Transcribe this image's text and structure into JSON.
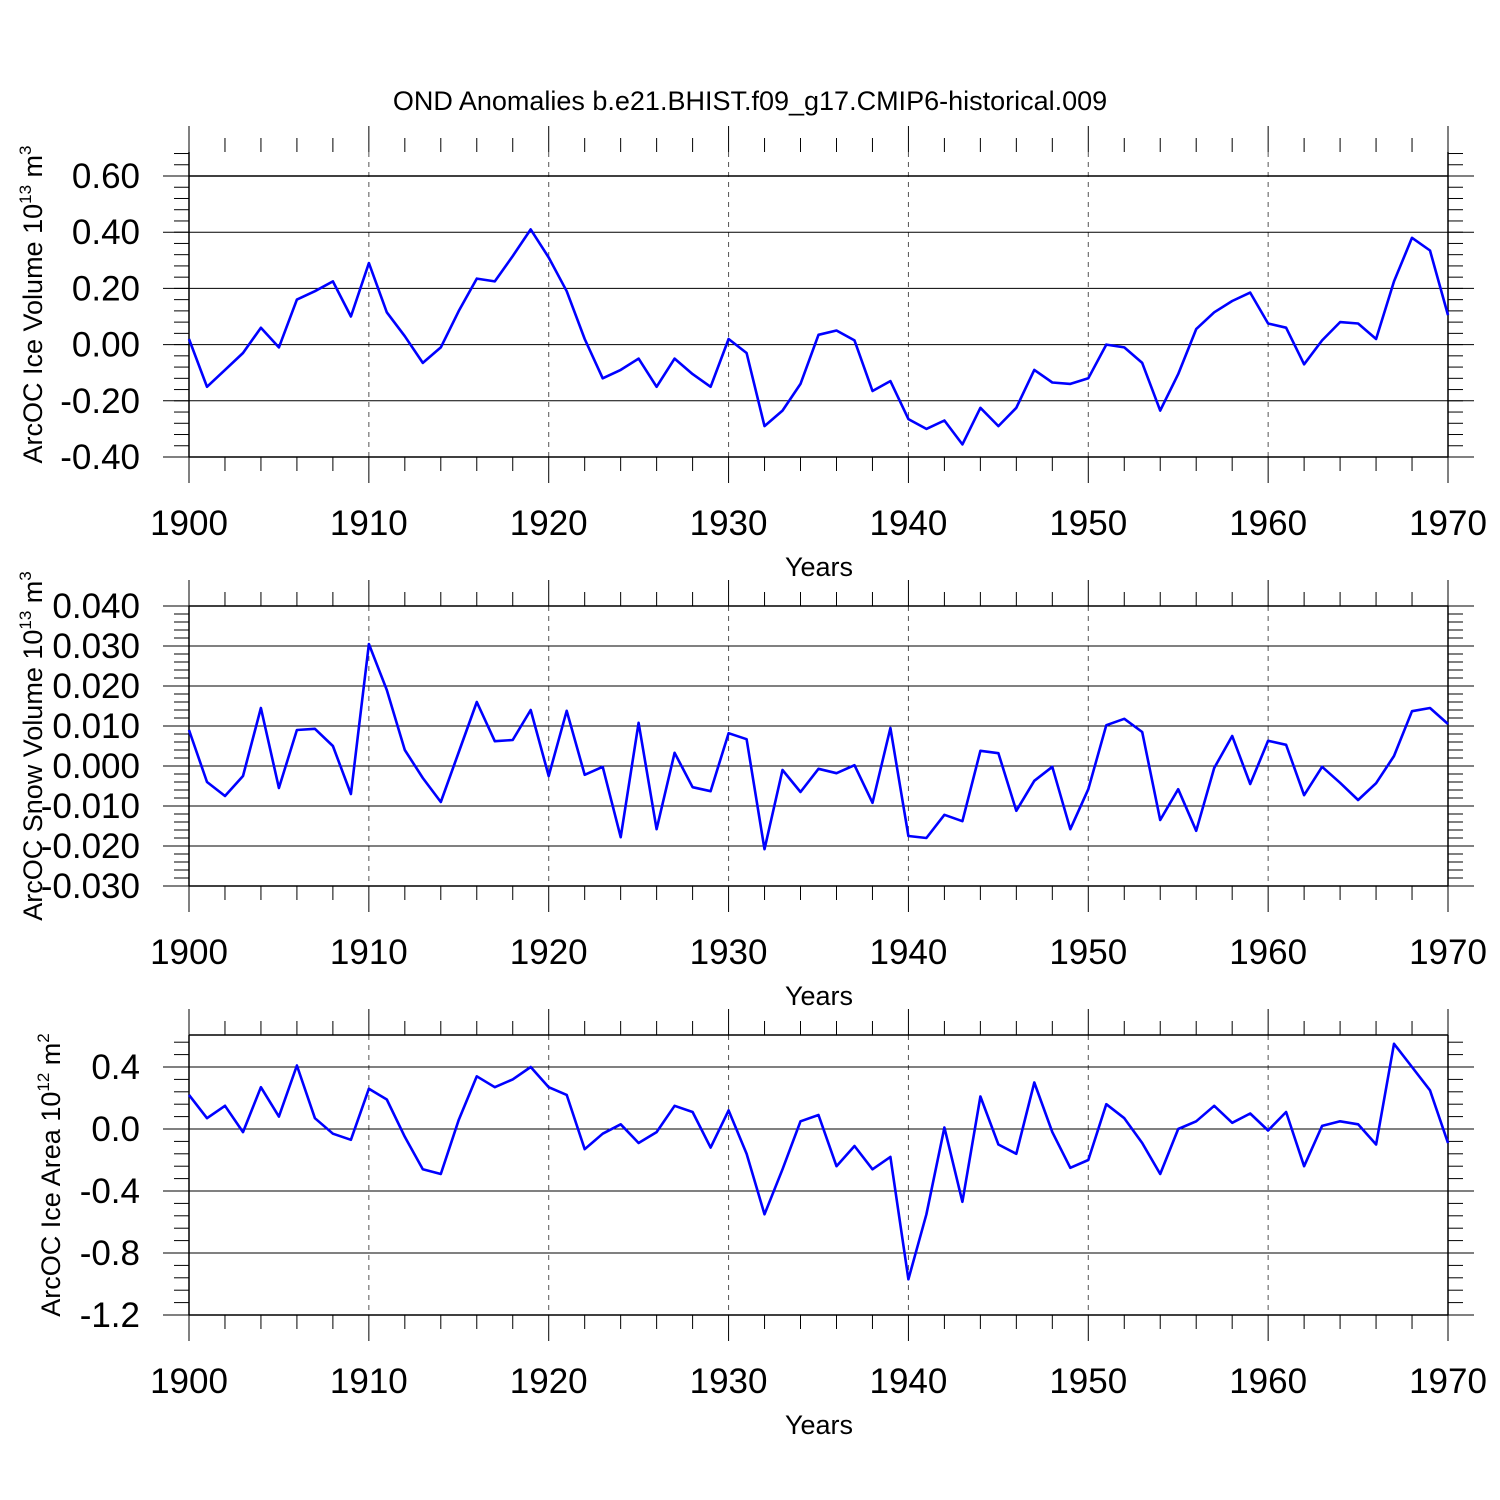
{
  "title": "OND Anomalies b.e21.BHIST.f09_g17.CMIP6-historical.009",
  "colors": {
    "line": "#0000ff",
    "axis": "#000000",
    "grid": "#555555"
  },
  "chart_data": [
    {
      "type": "line",
      "xlabel": "Years",
      "ylabel_main": "ArcOC Ice Volume 10",
      "ylabel_exp": "13",
      "ylabel_unit": " m",
      "ylabel_unit_exp": "3",
      "xlim": [
        1900,
        1970
      ],
      "ylim": [
        -0.4,
        0.7
      ],
      "yticks": [
        -0.4,
        -0.2,
        0.0,
        0.2,
        0.4,
        0.6
      ],
      "ytick_labels": [
        "-0.40",
        "-0.20",
        "0.00",
        "0.20",
        "0.40",
        "0.60"
      ],
      "xticks": [
        1900,
        1910,
        1920,
        1930,
        1940,
        1950,
        1960,
        1970
      ],
      "xtick_labels": [
        "1900",
        "1910",
        "1920",
        "1930",
        "1940",
        "1950",
        "1960",
        "1970"
      ],
      "grid_x": [
        1910,
        1920,
        1930,
        1940,
        1950,
        1960
      ],
      "series": [
        {
          "name": "ArcOC Ice Volume",
          "x_start": 1900,
          "values": [
            0.02,
            -0.15,
            -0.09,
            -0.03,
            0.06,
            -0.01,
            0.16,
            0.19,
            0.225,
            0.1,
            0.29,
            0.115,
            0.03,
            -0.065,
            -0.01,
            0.12,
            0.235,
            0.225,
            0.315,
            0.41,
            0.31,
            0.19,
            0.02,
            -0.12,
            -0.09,
            -0.05,
            -0.15,
            -0.05,
            -0.105,
            -0.15,
            0.02,
            -0.03,
            -0.29,
            -0.235,
            -0.14,
            0.035,
            0.05,
            0.015,
            -0.165,
            -0.13,
            -0.265,
            -0.3,
            -0.27,
            -0.355,
            -0.225,
            -0.29,
            -0.225,
            -0.09,
            -0.135,
            -0.14,
            -0.12,
            0.0,
            -0.01,
            -0.065,
            -0.235,
            -0.105,
            0.055,
            0.115,
            0.155,
            0.185,
            0.075,
            0.06,
            -0.07,
            0.015,
            0.08,
            0.075,
            0.02,
            0.225,
            0.38,
            0.335,
            0.105
          ]
        }
      ]
    },
    {
      "type": "line",
      "xlabel": "Years",
      "ylabel_main": "ArcOC Snow Volume 10",
      "ylabel_exp": "13",
      "ylabel_unit": " m",
      "ylabel_unit_exp": "3",
      "xlim": [
        1900,
        1970
      ],
      "ylim": [
        -0.03,
        0.04
      ],
      "yticks": [
        -0.03,
        -0.02,
        -0.01,
        0.0,
        0.01,
        0.02,
        0.03,
        0.04
      ],
      "ytick_labels": [
        "-0.030",
        "-0.020",
        "-0.010",
        "0.000",
        "0.010",
        "0.020",
        "0.030",
        "0.040"
      ],
      "xticks": [
        1900,
        1910,
        1920,
        1930,
        1940,
        1950,
        1960,
        1970
      ],
      "xtick_labels": [
        "1900",
        "1910",
        "1920",
        "1930",
        "1940",
        "1950",
        "1960",
        "1970"
      ],
      "grid_x": [
        1910,
        1920,
        1930,
        1940,
        1950,
        1960
      ],
      "series": [
        {
          "name": "ArcOC Snow Volume",
          "x_start": 1900,
          "values": [
            0.009,
            -0.004,
            -0.0075,
            -0.0025,
            0.0145,
            -0.0055,
            0.009,
            0.0093,
            0.005,
            -0.007,
            0.0305,
            0.019,
            0.004,
            -0.003,
            -0.009,
            0.0035,
            0.016,
            0.0062,
            0.0065,
            0.014,
            -0.0025,
            0.0138,
            -0.0022,
            -0.0002,
            -0.0178,
            0.0108,
            -0.0158,
            0.0033,
            -0.0053,
            -0.0063,
            0.0082,
            0.0067,
            -0.0208,
            -0.001,
            -0.0065,
            -0.0007,
            -0.0018,
            0.0002,
            -0.0092,
            0.0095,
            -0.0175,
            -0.018,
            -0.0122,
            -0.0138,
            0.0038,
            0.0032,
            -0.0112,
            -0.0037,
            -0.0002,
            -0.0158,
            -0.0058,
            0.0102,
            0.0118,
            0.0085,
            -0.0135,
            -0.0058,
            -0.0162,
            -0.0005,
            0.0075,
            -0.0045,
            0.0063,
            0.0053,
            -0.0073,
            -0.0002,
            -0.0042,
            -0.0085,
            -0.0043,
            0.0025,
            0.0137,
            0.0145,
            0.0105
          ]
        }
      ]
    },
    {
      "type": "line",
      "xlabel": "Years",
      "ylabel_main": "ArcOC Ice Area 10",
      "ylabel_exp": "12",
      "ylabel_unit": " m",
      "ylabel_unit_exp": "2",
      "xlim": [
        1900,
        1970
      ],
      "ylim": [
        -1.2,
        0.6
      ],
      "yticks": [
        -1.2,
        -0.8,
        -0.4,
        0.0,
        0.4
      ],
      "ytick_labels": [
        "-1.2",
        "-0.8",
        "-0.4",
        "0.0",
        "0.4"
      ],
      "xticks": [
        1900,
        1910,
        1920,
        1930,
        1940,
        1950,
        1960,
        1970
      ],
      "xtick_labels": [
        "1900",
        "1910",
        "1920",
        "1930",
        "1940",
        "1950",
        "1960",
        "1970"
      ],
      "grid_x": [
        1910,
        1920,
        1930,
        1940,
        1950,
        1960
      ],
      "series": [
        {
          "name": "ArcOC Ice Area",
          "x_start": 1900,
          "values": [
            0.22,
            0.07,
            0.15,
            -0.02,
            0.27,
            0.08,
            0.41,
            0.07,
            -0.03,
            -0.07,
            0.26,
            0.19,
            -0.05,
            -0.26,
            -0.29,
            0.06,
            0.34,
            0.27,
            0.32,
            0.4,
            0.27,
            0.22,
            -0.13,
            -0.03,
            0.03,
            -0.09,
            -0.02,
            0.15,
            0.11,
            -0.12,
            0.12,
            -0.16,
            -0.55,
            -0.26,
            0.05,
            0.09,
            -0.24,
            -0.11,
            -0.26,
            -0.18,
            -0.97,
            -0.55,
            0.01,
            -0.47,
            0.21,
            -0.1,
            -0.16,
            0.3,
            -0.02,
            -0.25,
            -0.2,
            0.16,
            0.07,
            -0.09,
            -0.29,
            0.0,
            0.05,
            0.15,
            0.04,
            0.1,
            -0.01,
            0.11,
            -0.24,
            0.02,
            0.05,
            0.03,
            -0.1,
            0.55,
            0.4,
            0.25,
            -0.09
          ]
        }
      ]
    }
  ]
}
